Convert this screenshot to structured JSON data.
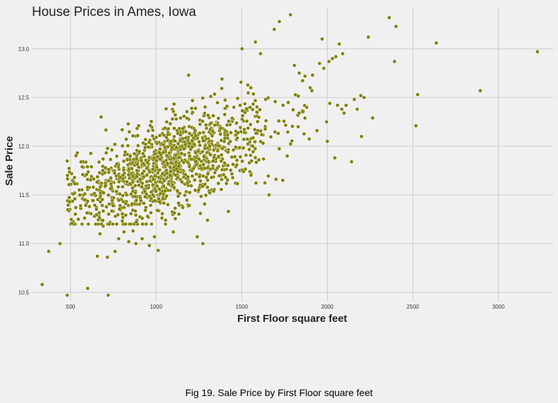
{
  "caption": "Fig 19. Sale Price by First Floor square feet",
  "chart_data": {
    "type": "scatter",
    "title": "House Prices in Ames, Iowa",
    "xlabel": "First Floor square feet",
    "ylabel": "Sale Price",
    "xlim": [
      274,
      3320
    ],
    "ylim": [
      10.41,
      13.43
    ],
    "xticks": [
      500,
      1000,
      1500,
      2000,
      2500,
      3000
    ],
    "yticks": [
      10.5,
      11.0,
      11.5,
      12.0,
      12.5,
      13.0
    ],
    "grid": true,
    "colors": {
      "point": "#808000",
      "point_edge": "#ffffff",
      "grid": "#cbcbcb",
      "background": "#f0f0f0"
    },
    "series": [
      {
        "x": [
          334,
          372,
          438,
          480,
          656,
          600,
          720,
          1273,
          482,
          496,
          530,
          545,
          590,
          610,
          640,
          672,
          690,
          715,
          724,
          760,
          781,
          812,
          840,
          865,
          882,
          918,
          960,
          990,
          1012,
          1055,
          1100,
          1240,
          1300,
          1324,
          1422,
          1464,
          1490,
          1545,
          1600,
          1660,
          1700,
          1740,
          1766,
          1830,
          1852,
          1880,
          1900,
          1914,
          1955,
          1970,
          1980,
          2010,
          2030,
          2050,
          2070,
          2090,
          2110,
          2142,
          2158,
          2175,
          2196,
          2215,
          2240,
          2265,
          2362,
          2393,
          2402,
          2518,
          2528,
          2637,
          2894,
          3228,
          1502,
          1580,
          1610,
          1690,
          1720,
          1785,
          1808,
          1870,
          1910,
          1940,
          2000,
          2060,
          2085,
          1996,
          2015,
          2044,
          2098,
          2200
        ],
        "y": [
          10.58,
          10.92,
          11.0,
          10.47,
          10.87,
          10.54,
          10.47,
          11.0,
          11.7,
          11.35,
          11.9,
          11.25,
          11.45,
          11.38,
          11.28,
          11.1,
          11.18,
          10.86,
          11.3,
          10.92,
          11.05,
          11.12,
          11.02,
          11.13,
          11.0,
          11.05,
          10.98,
          11.07,
          10.93,
          11.24,
          11.12,
          11.07,
          11.24,
          11.55,
          11.33,
          11.62,
          11.75,
          11.83,
          11.86,
          11.5,
          11.66,
          11.65,
          11.9,
          12.2,
          12.35,
          12.4,
          12.6,
          12.73,
          12.85,
          13.1,
          12.8,
          12.87,
          12.9,
          12.92,
          13.05,
          12.95,
          12.42,
          11.84,
          12.48,
          12.38,
          12.52,
          12.5,
          13.12,
          12.29,
          13.32,
          12.87,
          13.23,
          12.21,
          12.53,
          13.06,
          12.57,
          12.97,
          13.0,
          13.07,
          12.95,
          13.2,
          13.28,
          13.35,
          12.83,
          12.72,
          12.57,
          12.16,
          12.05,
          12.42,
          12.38,
          12.25,
          12.44,
          11.88,
          12.34,
          12.1
        ]
      }
    ]
  }
}
